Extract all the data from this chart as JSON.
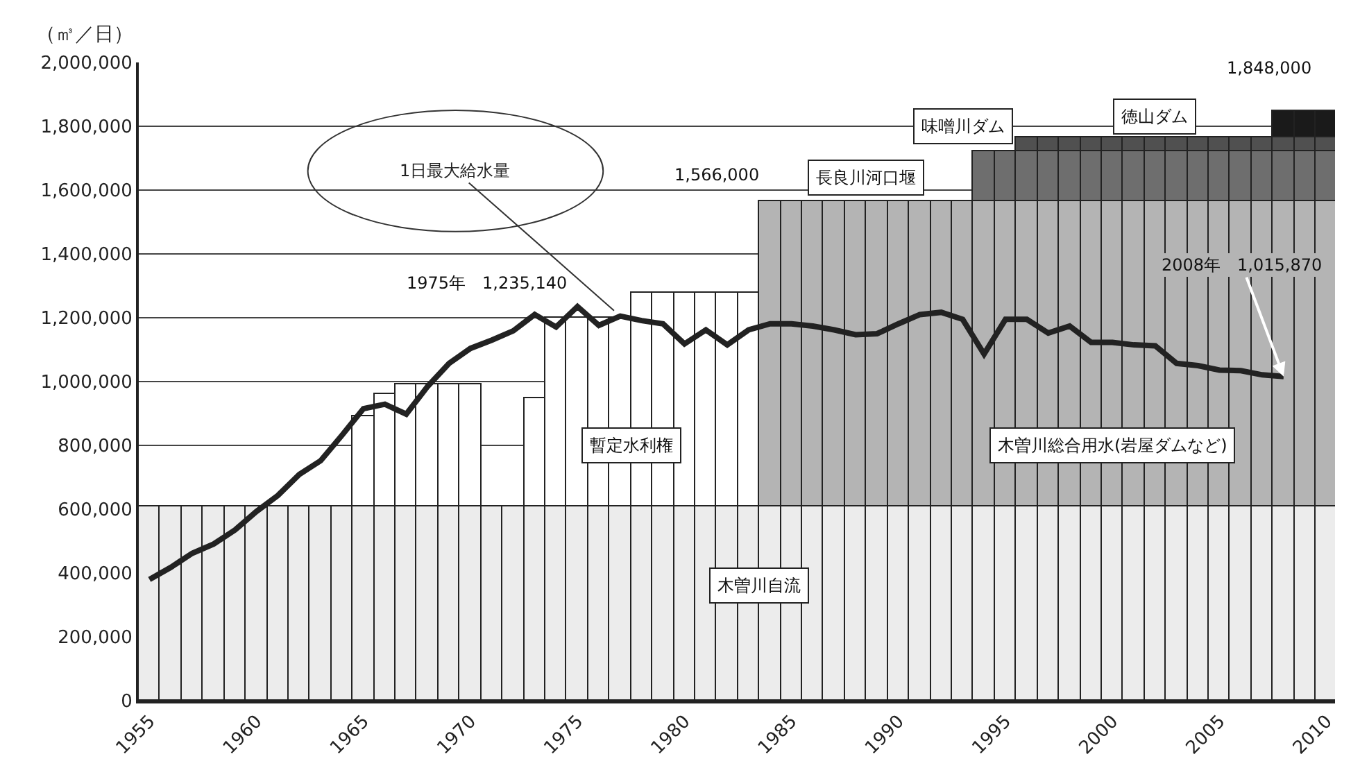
{
  "chart_data": {
    "type": "bar",
    "stacked": true,
    "ylabel": "（㎥／日）",
    "x": [
      1955,
      1956,
      1957,
      1958,
      1959,
      1960,
      1961,
      1962,
      1963,
      1964,
      1965,
      1966,
      1967,
      1968,
      1969,
      1970,
      1971,
      1972,
      1973,
      1974,
      1975,
      1976,
      1977,
      1978,
      1979,
      1980,
      1981,
      1982,
      1983,
      1984,
      1985,
      1986,
      1987,
      1988,
      1989,
      1990,
      1991,
      1992,
      1993,
      1994,
      1995,
      1996,
      1997,
      1998,
      1999,
      2000,
      2001,
      2002,
      2003,
      2004,
      2005,
      2006,
      2007,
      2008,
      2009,
      2010
    ],
    "series": [
      {
        "name": "木曽川自流",
        "color": "#ececec",
        "values": [
          610000,
          610000,
          610000,
          610000,
          610000,
          610000,
          610000,
          610000,
          610000,
          610000,
          610000,
          610000,
          610000,
          610000,
          610000,
          610000,
          610000,
          610000,
          610000,
          610000,
          610000,
          610000,
          610000,
          610000,
          610000,
          610000,
          610000,
          610000,
          610000,
          610000,
          610000,
          610000,
          610000,
          610000,
          610000,
          610000,
          610000,
          610000,
          610000,
          610000,
          610000,
          610000,
          610000,
          610000,
          610000,
          610000,
          610000,
          610000,
          610000,
          610000,
          610000,
          610000,
          610000,
          610000,
          610000,
          610000
        ]
      },
      {
        "name": "暫定水利権",
        "color": "#ffffff",
        "values": [
          null,
          null,
          null,
          null,
          null,
          null,
          null,
          null,
          null,
          null,
          280000,
          350000,
          380000,
          380000,
          380000,
          380000,
          null,
          null,
          340000,
          590000,
          590000,
          590000,
          590000,
          670000,
          670000,
          670000,
          670000,
          670000,
          670000,
          null,
          null,
          null,
          null,
          null,
          null,
          null,
          null,
          null,
          null,
          null,
          null,
          null,
          null,
          null,
          null,
          null,
          null,
          null,
          null,
          null,
          null,
          null,
          null,
          null,
          null,
          null
        ]
      },
      {
        "name": "木曽川総合用水(岩屋ダムなど)",
        "color": "#b4b4b4",
        "values": [
          null,
          null,
          null,
          null,
          null,
          null,
          null,
          null,
          null,
          null,
          null,
          null,
          null,
          null,
          null,
          null,
          null,
          null,
          null,
          null,
          null,
          null,
          null,
          null,
          null,
          null,
          null,
          null,
          null,
          956000,
          956000,
          956000,
          956000,
          956000,
          956000,
          956000,
          956000,
          956000,
          956000,
          956000,
          956000,
          956000,
          956000,
          956000,
          956000,
          956000,
          956000,
          956000,
          956000,
          956000,
          956000,
          956000,
          956000,
          956000,
          956000,
          956000
        ]
      },
      {
        "name": "長良川河口堰",
        "color": "#6e6e6e",
        "values": [
          null,
          null,
          null,
          null,
          null,
          null,
          null,
          null,
          null,
          null,
          null,
          null,
          null,
          null,
          null,
          null,
          null,
          null,
          null,
          null,
          null,
          null,
          null,
          null,
          null,
          null,
          null,
          null,
          null,
          null,
          null,
          null,
          null,
          null,
          null,
          null,
          null,
          null,
          null,
          154000,
          154000,
          154000,
          154000,
          154000,
          154000,
          154000,
          154000,
          154000,
          154000,
          154000,
          154000,
          154000,
          154000,
          154000,
          154000,
          154000
        ]
      },
      {
        "name": "味噌川ダム",
        "color": "#505050",
        "values": [
          null,
          null,
          null,
          null,
          null,
          null,
          null,
          null,
          null,
          null,
          null,
          null,
          null,
          null,
          null,
          null,
          null,
          null,
          null,
          null,
          null,
          null,
          null,
          null,
          null,
          null,
          null,
          null,
          null,
          null,
          null,
          null,
          null,
          null,
          null,
          null,
          null,
          null,
          null,
          null,
          null,
          46000,
          46000,
          46000,
          46000,
          46000,
          46000,
          46000,
          46000,
          46000,
          46000,
          46000,
          46000,
          46000,
          46000,
          46000
        ]
      },
      {
        "name": "徳山ダム",
        "color": "#1a1a1a",
        "values": [
          null,
          null,
          null,
          null,
          null,
          null,
          null,
          null,
          null,
          null,
          null,
          null,
          null,
          null,
          null,
          null,
          null,
          null,
          null,
          null,
          null,
          null,
          null,
          null,
          null,
          null,
          null,
          null,
          null,
          null,
          null,
          null,
          null,
          null,
          null,
          null,
          null,
          null,
          null,
          null,
          null,
          null,
          null,
          null,
          null,
          null,
          null,
          null,
          null,
          null,
          null,
          null,
          null,
          82000,
          82000,
          82000
        ]
      },
      {
        "name": "1日最大給水量",
        "type": "line",
        "color": "#222222",
        "x": [
          1955,
          1956,
          1957,
          1958,
          1959,
          1960,
          1961,
          1962,
          1963,
          1964,
          1965,
          1966,
          1967,
          1968,
          1969,
          1970,
          1971,
          1972,
          1973,
          1974,
          1975,
          1976,
          1977,
          1978,
          1979,
          1980,
          1981,
          1982,
          1983,
          1984,
          1985,
          1986,
          1987,
          1988,
          1989,
          1990,
          1991,
          1992,
          1993,
          1994,
          1995,
          1996,
          1997,
          1998,
          1999,
          2000,
          2001,
          2002,
          2003,
          2004,
          2005,
          2006,
          2007,
          2008
        ],
        "values": [
          380000,
          418000,
          462000,
          491000,
          535000,
          593000,
          643000,
          709000,
          752000,
          832000,
          915000,
          929000,
          898000,
          985000,
          1057000,
          1104000,
          1130000,
          1159000,
          1210000,
          1171000,
          1235140,
          1176000,
          1205000,
          1191000,
          1181000,
          1118000,
          1162000,
          1115000,
          1162000,
          1181000,
          1181000,
          1174000,
          1162000,
          1147000,
          1150000,
          1181000,
          1210000,
          1217000,
          1195000,
          1086000,
          1195000,
          1195000,
          1152000,
          1174000,
          1123000,
          1123000,
          1115000,
          1112000,
          1057000,
          1050000,
          1036000,
          1034000,
          1021000,
          1015870
        ]
      }
    ],
    "annotations": [
      {
        "text": "1975年　1,235,140",
        "x": 1975,
        "y": 1235140
      },
      {
        "text": "1,566,000",
        "x": 1984,
        "y": 1566000
      },
      {
        "text": "2008年　1,015,870",
        "x": 2008,
        "y": 1015870
      },
      {
        "text": "1,848,000",
        "x": 2008,
        "y": 1848000
      }
    ],
    "xlim": [
      1954.5,
      2010.4
    ],
    "xticks": [
      1955,
      1960,
      1965,
      1970,
      1975,
      1980,
      1985,
      1990,
      1995,
      2000,
      2005,
      2010
    ],
    "ylim": [
      0,
      2000000
    ],
    "yticks": [
      {
        "value": 0,
        "label": "0"
      },
      {
        "value": 200000,
        "label": "200,000"
      },
      {
        "value": 400000,
        "label": "400,000"
      },
      {
        "value": 600000,
        "label": "600,000"
      },
      {
        "value": 800000,
        "label": "800,000"
      },
      {
        "value": 1000000,
        "label": "1,000,000"
      },
      {
        "value": 1200000,
        "label": "1,200,000"
      },
      {
        "value": 1400000,
        "label": "1,400,000"
      },
      {
        "value": 1600000,
        "label": "1,600,000"
      },
      {
        "value": 1800000,
        "label": "1,800,000"
      },
      {
        "value": 2000000,
        "label": "2,000,000"
      }
    ],
    "grid": "y",
    "legend": false
  }
}
